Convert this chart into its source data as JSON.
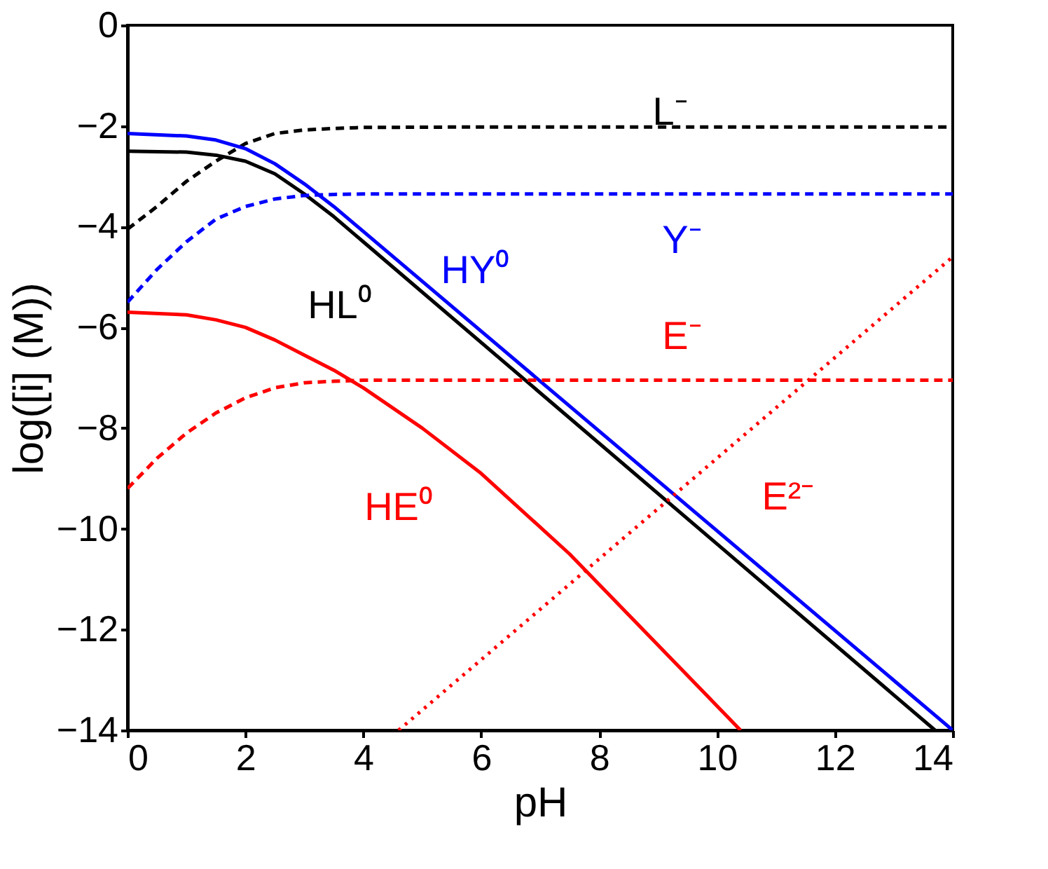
{
  "chart_data": {
    "type": "line",
    "xlabel": "pH",
    "ylabel": "log([i] (M))",
    "xlim": [
      0,
      14
    ],
    "ylim": [
      -14,
      0
    ],
    "xticks": [
      0,
      2,
      4,
      6,
      8,
      10,
      12,
      14
    ],
    "yticks": [
      0,
      -2,
      -4,
      -6,
      -8,
      -10,
      -12,
      -14
    ],
    "grid": false,
    "marker": "none",
    "series": [
      {
        "name": "L⁻",
        "color": "#000000",
        "line_style": "dashed",
        "x": [
          0,
          0.5,
          1,
          1.5,
          2,
          2.5,
          3,
          3.5,
          4,
          6,
          8,
          10,
          12,
          14
        ],
        "values": [
          -4.05,
          -3.6,
          -3.1,
          -2.7,
          -2.35,
          -2.15,
          -2.08,
          -2.05,
          -2.03,
          -2.02,
          -2.02,
          -2.02,
          -2.02,
          -2.02
        ]
      },
      {
        "name": "HL⁰",
        "color": "#000000",
        "line_style": "solid",
        "x": [
          0,
          1,
          1.5,
          2,
          2.5,
          3,
          3.5,
          4,
          13.7
        ],
        "values": [
          -2.5,
          -2.52,
          -2.58,
          -2.7,
          -2.95,
          -3.35,
          -3.8,
          -4.3,
          -14
        ]
      },
      {
        "name": "HY⁰",
        "color": "#0000ff",
        "line_style": "solid",
        "x": [
          0,
          1,
          1.5,
          2,
          2.5,
          3,
          3.5,
          14
        ],
        "values": [
          -2.15,
          -2.2,
          -2.28,
          -2.45,
          -2.75,
          -3.15,
          -3.6,
          -14
        ]
      },
      {
        "name": "Y⁻",
        "color": "#0000ff",
        "line_style": "dashed",
        "x": [
          0,
          0.5,
          1,
          1.5,
          2,
          2.5,
          3,
          3.5,
          4,
          6,
          8,
          10,
          12,
          14
        ],
        "values": [
          -5.5,
          -4.85,
          -4.3,
          -3.85,
          -3.6,
          -3.45,
          -3.38,
          -3.36,
          -3.35,
          -3.35,
          -3.35,
          -3.35,
          -3.35,
          -3.35
        ]
      },
      {
        "name": "HE⁰",
        "color": "#ff0000",
        "line_style": "solid",
        "x": [
          0,
          1,
          1.5,
          2,
          2.5,
          3,
          3.5,
          4,
          5,
          6,
          7.5,
          10.4
        ],
        "values": [
          -5.7,
          -5.75,
          -5.85,
          -6.0,
          -6.25,
          -6.55,
          -6.85,
          -7.2,
          -8.0,
          -8.9,
          -10.5,
          -14
        ]
      },
      {
        "name": "E⁻",
        "color": "#ff0000",
        "line_style": "dashed",
        "x": [
          0,
          0.5,
          1,
          1.5,
          2,
          2.5,
          3,
          3.5,
          4,
          6,
          8,
          10,
          12,
          14
        ],
        "values": [
          -9.2,
          -8.6,
          -8.1,
          -7.7,
          -7.4,
          -7.2,
          -7.1,
          -7.07,
          -7.05,
          -7.05,
          -7.05,
          -7.05,
          -7.05,
          -7.05
        ]
      },
      {
        "name": "E²⁻",
        "color": "#ff0000",
        "line_style": "dotted",
        "x": [
          4.6,
          14
        ],
        "values": [
          -14,
          -4.6
        ]
      }
    ]
  }
}
